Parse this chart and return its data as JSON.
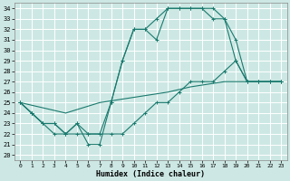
{
  "xlabel": "Humidex (Indice chaleur)",
  "bg_color": "#cde8e4",
  "grid_color": "#b0d8d2",
  "line_color": "#1a7a6e",
  "xlim": [
    -0.5,
    23.5
  ],
  "ylim": [
    19.5,
    34.5
  ],
  "xticks": [
    0,
    1,
    2,
    3,
    4,
    5,
    6,
    7,
    8,
    9,
    10,
    11,
    12,
    13,
    14,
    15,
    16,
    17,
    18,
    19,
    20,
    21,
    22,
    23
  ],
  "yticks": [
    20,
    21,
    22,
    23,
    24,
    25,
    26,
    27,
    28,
    29,
    30,
    31,
    32,
    33,
    34
  ],
  "line1": {
    "x": [
      0,
      1,
      2,
      3,
      4,
      5,
      6,
      7,
      8,
      9,
      10,
      11,
      12,
      13,
      14,
      15,
      16,
      17,
      18,
      19,
      20,
      21,
      22,
      23
    ],
    "y": [
      25,
      24,
      23,
      23,
      22,
      23,
      21,
      21,
      25,
      29,
      32,
      32,
      31,
      34,
      34,
      34,
      34,
      34,
      33,
      31,
      27,
      27,
      27,
      27
    ]
  },
  "line2": {
    "x": [
      0,
      1,
      2,
      3,
      4,
      5,
      6,
      7,
      8,
      9,
      10,
      11,
      12,
      13,
      14,
      15,
      16,
      17,
      18,
      19,
      20,
      21,
      22,
      23
    ],
    "y": [
      25,
      24,
      23,
      22,
      22,
      22,
      22,
      22,
      25,
      29,
      32,
      32,
      33,
      34,
      34,
      34,
      34,
      33,
      33,
      29,
      27,
      27,
      27,
      27
    ]
  },
  "line3": {
    "x": [
      0,
      1,
      2,
      3,
      4,
      5,
      6,
      7,
      8,
      9,
      10,
      11,
      12,
      13,
      14,
      15,
      16,
      17,
      18,
      19,
      20,
      21,
      22,
      23
    ],
    "y": [
      25,
      24,
      23,
      23,
      22,
      23,
      22,
      22,
      22,
      22,
      23,
      24,
      25,
      25,
      26,
      27,
      27,
      27,
      28,
      29,
      27,
      27,
      27,
      27
    ]
  },
  "line4": {
    "x": [
      0,
      2,
      4,
      7,
      10,
      13,
      15,
      18,
      20,
      23
    ],
    "y": [
      25,
      24.5,
      24,
      25,
      25.5,
      26,
      26.5,
      27,
      27,
      27
    ]
  }
}
